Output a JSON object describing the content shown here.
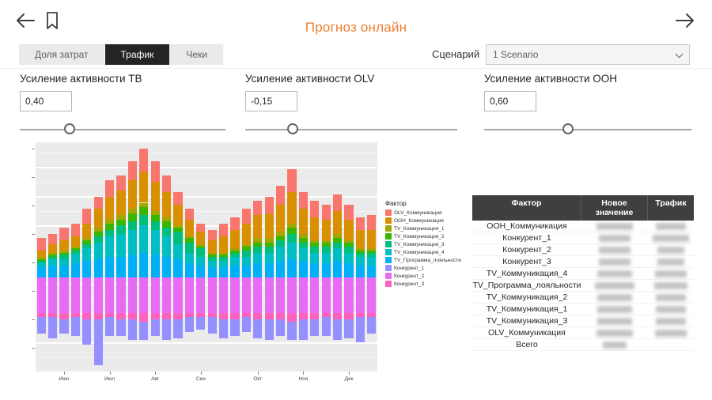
{
  "header": {
    "title": "Прогноз онлайн"
  },
  "colors": {
    "accent": "#ED7D31",
    "tab_active_bg": "#252423",
    "table_header_bg": "#3f3f3f",
    "plot_bg": "#ebebeb"
  },
  "tabs": {
    "items": [
      {
        "label": "Доля затрат",
        "active": false
      },
      {
        "label": "Трафик",
        "active": true
      },
      {
        "label": "Чеки",
        "active": false
      }
    ]
  },
  "scenario": {
    "label": "Сценарий",
    "value": "1 Scenario"
  },
  "sliders": [
    {
      "label": "Усиление активности ТВ",
      "value": "0,40"
    },
    {
      "label": "Усиление активности OLV",
      "value": "-0,15"
    },
    {
      "label": "Усиление активности OOH",
      "value": "0,60"
    }
  ],
  "chart_data": {
    "type": "bar",
    "stacked": true,
    "legend_title": "Фактор",
    "legend_position": "right",
    "grid": true,
    "x_tick_labels": [
      "Июн",
      "Июл",
      "Авг",
      "Сен",
      "Окт",
      "Ноя",
      "Дек"
    ],
    "x_tick_positions": [
      2,
      6,
      10,
      14,
      19,
      23,
      27
    ],
    "stack_order_positive": [
      "Конкурент_2",
      "TV_Программа_лояльности",
      "TV_Коммуникация_4",
      "TV_Коммуникация_3",
      "TV_Коммуникация_2",
      "TV_Коммуникация_1",
      "OOH_Коммуникация",
      "OLV_Коммуникация"
    ],
    "stack_order_negative": [
      "Конкурент_3",
      "Конкурент_1"
    ],
    "series": [
      {
        "name": "OLV_Коммуникация",
        "color": "#F8766D",
        "values": [
          6,
          5,
          6,
          6,
          7,
          6,
          8,
          7,
          9,
          11,
          10,
          8,
          6,
          5,
          4,
          5,
          6,
          6,
          7,
          7,
          8,
          9,
          11,
          8,
          8,
          7,
          8,
          7,
          6,
          7
        ]
      },
      {
        "name": "OOH_Коммуникация",
        "color": "#D89000",
        "values": [
          3,
          4,
          5,
          5,
          7,
          9,
          11,
          12,
          14,
          15,
          14,
          12,
          10,
          8,
          6,
          6,
          8,
          9,
          10,
          11,
          12,
          13,
          15,
          12,
          11,
          10,
          11,
          10,
          9,
          9
        ]
      },
      {
        "name": "TV_Коммуникация_1",
        "color": "#A3A500",
        "values": [
          1,
          1,
          1,
          1,
          1,
          2,
          2,
          2,
          2,
          2,
          2,
          2,
          1,
          1,
          1,
          1,
          1,
          1,
          1,
          2,
          2,
          2,
          2,
          2,
          1,
          1,
          2,
          1,
          1,
          1
        ]
      },
      {
        "name": "TV_Коммуникация_2",
        "color": "#39B600",
        "values": [
          1,
          1,
          1,
          1,
          2,
          2,
          3,
          3,
          4,
          4,
          3,
          3,
          2,
          2,
          1,
          1,
          1,
          1,
          2,
          2,
          2,
          2,
          3,
          2,
          2,
          2,
          2,
          2,
          1,
          1
        ]
      },
      {
        "name": "TV_Коммуникация_3",
        "color": "#00BF7D",
        "values": [
          1,
          1,
          2,
          2,
          2,
          3,
          3,
          4,
          4,
          5,
          4,
          4,
          6,
          5,
          4,
          2,
          2,
          2,
          3,
          3,
          3,
          3,
          4,
          3,
          3,
          3,
          3,
          3,
          2,
          2
        ]
      },
      {
        "name": "TV_Коммуникация_4",
        "color": "#00BFC4",
        "values": [
          2,
          3,
          3,
          4,
          6,
          8,
          10,
          11,
          12,
          13,
          12,
          10,
          7,
          5,
          4,
          3,
          3,
          4,
          4,
          5,
          5,
          7,
          8,
          6,
          5,
          5,
          6,
          5,
          4,
          4
        ]
      },
      {
        "name": "TV_Программа_лояльности",
        "color": "#00B0F6",
        "values": [
          5,
          6,
          6,
          7,
          8,
          9,
          10,
          10,
          11,
          12,
          11,
          10,
          9,
          7,
          6,
          5,
          5,
          6,
          6,
          7,
          7,
          8,
          9,
          8,
          7,
          7,
          8,
          7,
          6,
          6
        ]
      },
      {
        "name": "Конкурент_1",
        "color": "#9590FF",
        "values": [
          -8,
          -10,
          -7,
          -9,
          -12,
          -22,
          -9,
          -8,
          -10,
          -9,
          -8,
          -10,
          -9,
          -7,
          -6,
          -8,
          -9,
          -8,
          -7,
          -9,
          -10,
          -8,
          -9,
          -10,
          -8,
          -9,
          -10,
          -9,
          -12,
          -8
        ]
      },
      {
        "name": "Конкурент_2",
        "color": "#E76BF3",
        "values": [
          17,
          17,
          17,
          17,
          17,
          17,
          17,
          17,
          17,
          17,
          17,
          17,
          17,
          17,
          17,
          17,
          17,
          17,
          17,
          17,
          17,
          17,
          17,
          17,
          17,
          17,
          17,
          17,
          17,
          17
        ]
      },
      {
        "name": "Конкурент_3",
        "color": "#FF62BC",
        "values": [
          -2,
          -2,
          -3,
          -2,
          -3,
          -3,
          -2,
          -3,
          -3,
          -4,
          -3,
          -3,
          -3,
          -2,
          -2,
          -2,
          -3,
          -3,
          -2,
          -3,
          -3,
          -3,
          -4,
          -3,
          -3,
          -2,
          -3,
          -3,
          -2,
          -2
        ]
      }
    ]
  },
  "table": {
    "columns": [
      "Фактор",
      "Новое значение",
      "Трафик"
    ],
    "rows": [
      "OOH_Коммуникация",
      "Конкурент_1",
      "Конкурент_2",
      "Конкурент_3",
      "TV_Коммуникация_4",
      "TV_Программа_лояльности",
      "TV_Коммуникация_2",
      "TV_Коммуникация_1",
      "TV_Коммуникация_3",
      "OLV_Коммуникация",
      "Всего"
    ],
    "values_blurred": true
  }
}
